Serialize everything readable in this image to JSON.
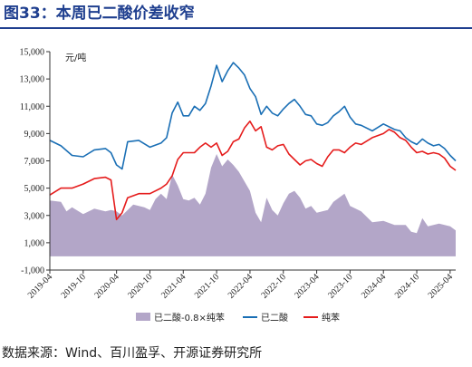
{
  "figure_title": "图33：本周已二酸价差收窄",
  "source": "数据来源：Wind、百川盈孚、开源证券研究所",
  "chart_data": {
    "type": "line",
    "title": "",
    "ylabel": "元/吨",
    "ylim": [
      -1000,
      15000
    ],
    "yticks": [
      -1000,
      1000,
      3000,
      5000,
      7000,
      9000,
      11000,
      13000,
      15000
    ],
    "ytick_labels": [
      "-1,000",
      "1,000",
      "3,000",
      "5,000",
      "7,000",
      "9,000",
      "11,000",
      "13,000",
      "15,000"
    ],
    "xlim": [
      "2019-04",
      "2025-05"
    ],
    "xticks": [
      "2019-04",
      "2019-10",
      "2020-04",
      "2020-10",
      "2021-04",
      "2021-10",
      "2022-04",
      "2022-10",
      "2023-04",
      "2023-10",
      "2024-04",
      "2024-10",
      "2025-04"
    ],
    "legend_position": "bottom",
    "series": [
      {
        "name": "已二酸-0.8×纯苯",
        "kind": "area",
        "color": "#b3a6c8",
        "points": [
          [
            "2019-04",
            4100
          ],
          [
            "2019-06",
            4000
          ],
          [
            "2019-07",
            3300
          ],
          [
            "2019-08",
            3600
          ],
          [
            "2019-10",
            3100
          ],
          [
            "2019-12",
            3500
          ],
          [
            "2020-02",
            3300
          ],
          [
            "2020-03",
            3400
          ],
          [
            "2020-04",
            3300
          ],
          [
            "2020-05",
            3000
          ],
          [
            "2020-07",
            3800
          ],
          [
            "2020-09",
            3600
          ],
          [
            "2020-10",
            3400
          ],
          [
            "2020-11",
            4200
          ],
          [
            "2020-12",
            4600
          ],
          [
            "2021-01",
            4200
          ],
          [
            "2021-02",
            6000
          ],
          [
            "2021-03",
            5200
          ],
          [
            "2021-04",
            4200
          ],
          [
            "2021-05",
            4100
          ],
          [
            "2021-06",
            4300
          ],
          [
            "2021-07",
            3800
          ],
          [
            "2021-08",
            4600
          ],
          [
            "2021-09",
            6500
          ],
          [
            "2021-10",
            7500
          ],
          [
            "2021-11",
            6600
          ],
          [
            "2021-12",
            7100
          ],
          [
            "2022-01",
            6700
          ],
          [
            "2022-02",
            6200
          ],
          [
            "2022-03",
            5500
          ],
          [
            "2022-04",
            4800
          ],
          [
            "2022-05",
            3200
          ],
          [
            "2022-06",
            2500
          ],
          [
            "2022-07",
            4300
          ],
          [
            "2022-08",
            3400
          ],
          [
            "2022-09",
            3000
          ],
          [
            "2022-10",
            3900
          ],
          [
            "2022-11",
            4600
          ],
          [
            "2022-12",
            4800
          ],
          [
            "2023-01",
            4300
          ],
          [
            "2023-02",
            3500
          ],
          [
            "2023-03",
            3700
          ],
          [
            "2023-04",
            3200
          ],
          [
            "2023-06",
            3400
          ],
          [
            "2023-07",
            4000
          ],
          [
            "2023-08",
            4300
          ],
          [
            "2023-09",
            4600
          ],
          [
            "2023-10",
            3700
          ],
          [
            "2023-12",
            3300
          ],
          [
            "2024-02",
            2500
          ],
          [
            "2024-04",
            2600
          ],
          [
            "2024-06",
            2300
          ],
          [
            "2024-08",
            2300
          ],
          [
            "2024-09",
            1800
          ],
          [
            "2024-10",
            1700
          ],
          [
            "2024-11",
            2800
          ],
          [
            "2024-12",
            2200
          ],
          [
            "2025-02",
            2400
          ],
          [
            "2025-04",
            2200
          ],
          [
            "2025-05",
            1900
          ]
        ]
      },
      {
        "name": "已二酸",
        "kind": "line",
        "color": "#1a6fb5",
        "points": [
          [
            "2019-04",
            8500
          ],
          [
            "2019-06",
            8100
          ],
          [
            "2019-08",
            7400
          ],
          [
            "2019-10",
            7300
          ],
          [
            "2019-12",
            7800
          ],
          [
            "2020-02",
            7900
          ],
          [
            "2020-03",
            7600
          ],
          [
            "2020-04",
            6700
          ],
          [
            "2020-05",
            6400
          ],
          [
            "2020-06",
            8400
          ],
          [
            "2020-08",
            8500
          ],
          [
            "2020-10",
            8000
          ],
          [
            "2020-12",
            8300
          ],
          [
            "2021-01",
            8700
          ],
          [
            "2021-02",
            10500
          ],
          [
            "2021-03",
            11300
          ],
          [
            "2021-04",
            10300
          ],
          [
            "2021-05",
            10300
          ],
          [
            "2021-06",
            11000
          ],
          [
            "2021-07",
            10700
          ],
          [
            "2021-08",
            11200
          ],
          [
            "2021-09",
            12500
          ],
          [
            "2021-10",
            14000
          ],
          [
            "2021-11",
            12800
          ],
          [
            "2021-12",
            13600
          ],
          [
            "2022-01",
            14200
          ],
          [
            "2022-02",
            13800
          ],
          [
            "2022-03",
            13300
          ],
          [
            "2022-04",
            12300
          ],
          [
            "2022-05",
            11700
          ],
          [
            "2022-06",
            10400
          ],
          [
            "2022-07",
            11000
          ],
          [
            "2022-08",
            10500
          ],
          [
            "2022-09",
            10300
          ],
          [
            "2022-10",
            10800
          ],
          [
            "2022-11",
            11200
          ],
          [
            "2022-12",
            11500
          ],
          [
            "2023-01",
            11000
          ],
          [
            "2023-02",
            10400
          ],
          [
            "2023-03",
            10300
          ],
          [
            "2023-04",
            9700
          ],
          [
            "2023-05",
            9600
          ],
          [
            "2023-06",
            9800
          ],
          [
            "2023-07",
            10300
          ],
          [
            "2023-08",
            10600
          ],
          [
            "2023-09",
            11000
          ],
          [
            "2023-10",
            10200
          ],
          [
            "2023-11",
            9700
          ],
          [
            "2023-12",
            9600
          ],
          [
            "2024-02",
            9200
          ],
          [
            "2024-04",
            9700
          ],
          [
            "2024-06",
            9300
          ],
          [
            "2024-07",
            9200
          ],
          [
            "2024-08",
            8700
          ],
          [
            "2024-09",
            8400
          ],
          [
            "2024-10",
            8200
          ],
          [
            "2024-11",
            8600
          ],
          [
            "2024-12",
            8300
          ],
          [
            "2025-01",
            8100
          ],
          [
            "2025-02",
            8200
          ],
          [
            "2025-03",
            7900
          ],
          [
            "2025-04",
            7400
          ],
          [
            "2025-05",
            7000
          ]
        ]
      },
      {
        "name": "纯苯",
        "kind": "line",
        "color": "#e51c1c",
        "points": [
          [
            "2019-04",
            4500
          ],
          [
            "2019-06",
            5000
          ],
          [
            "2019-08",
            5000
          ],
          [
            "2019-10",
            5300
          ],
          [
            "2019-12",
            5700
          ],
          [
            "2020-02",
            5800
          ],
          [
            "2020-03",
            5600
          ],
          [
            "2020-04",
            2700
          ],
          [
            "2020-05",
            3200
          ],
          [
            "2020-06",
            4300
          ],
          [
            "2020-08",
            4600
          ],
          [
            "2020-10",
            4600
          ],
          [
            "2020-12",
            5000
          ],
          [
            "2021-01",
            5300
          ],
          [
            "2021-02",
            5900
          ],
          [
            "2021-03",
            7100
          ],
          [
            "2021-04",
            7600
          ],
          [
            "2021-06",
            7600
          ],
          [
            "2021-07",
            8000
          ],
          [
            "2021-08",
            8300
          ],
          [
            "2021-09",
            8000
          ],
          [
            "2021-10",
            8300
          ],
          [
            "2021-11",
            7400
          ],
          [
            "2021-12",
            7700
          ],
          [
            "2022-01",
            8400
          ],
          [
            "2022-02",
            8600
          ],
          [
            "2022-03",
            9400
          ],
          [
            "2022-04",
            9900
          ],
          [
            "2022-05",
            9200
          ],
          [
            "2022-06",
            9500
          ],
          [
            "2022-07",
            8000
          ],
          [
            "2022-08",
            7800
          ],
          [
            "2022-09",
            8100
          ],
          [
            "2022-10",
            8200
          ],
          [
            "2022-11",
            7500
          ],
          [
            "2022-12",
            7100
          ],
          [
            "2023-01",
            6700
          ],
          [
            "2023-02",
            7000
          ],
          [
            "2023-03",
            7100
          ],
          [
            "2023-04",
            6800
          ],
          [
            "2023-05",
            6600
          ],
          [
            "2023-06",
            7300
          ],
          [
            "2023-07",
            7800
          ],
          [
            "2023-08",
            7800
          ],
          [
            "2023-09",
            7600
          ],
          [
            "2023-10",
            8000
          ],
          [
            "2023-11",
            8300
          ],
          [
            "2023-12",
            8200
          ],
          [
            "2024-02",
            8700
          ],
          [
            "2024-04",
            9000
          ],
          [
            "2024-05",
            9300
          ],
          [
            "2024-06",
            9100
          ],
          [
            "2024-07",
            8700
          ],
          [
            "2024-08",
            8500
          ],
          [
            "2024-09",
            8000
          ],
          [
            "2024-10",
            7600
          ],
          [
            "2024-11",
            7700
          ],
          [
            "2024-12",
            7500
          ],
          [
            "2025-01",
            7600
          ],
          [
            "2025-02",
            7500
          ],
          [
            "2025-03",
            7200
          ],
          [
            "2025-04",
            6600
          ],
          [
            "2025-05",
            6300
          ]
        ]
      }
    ]
  }
}
